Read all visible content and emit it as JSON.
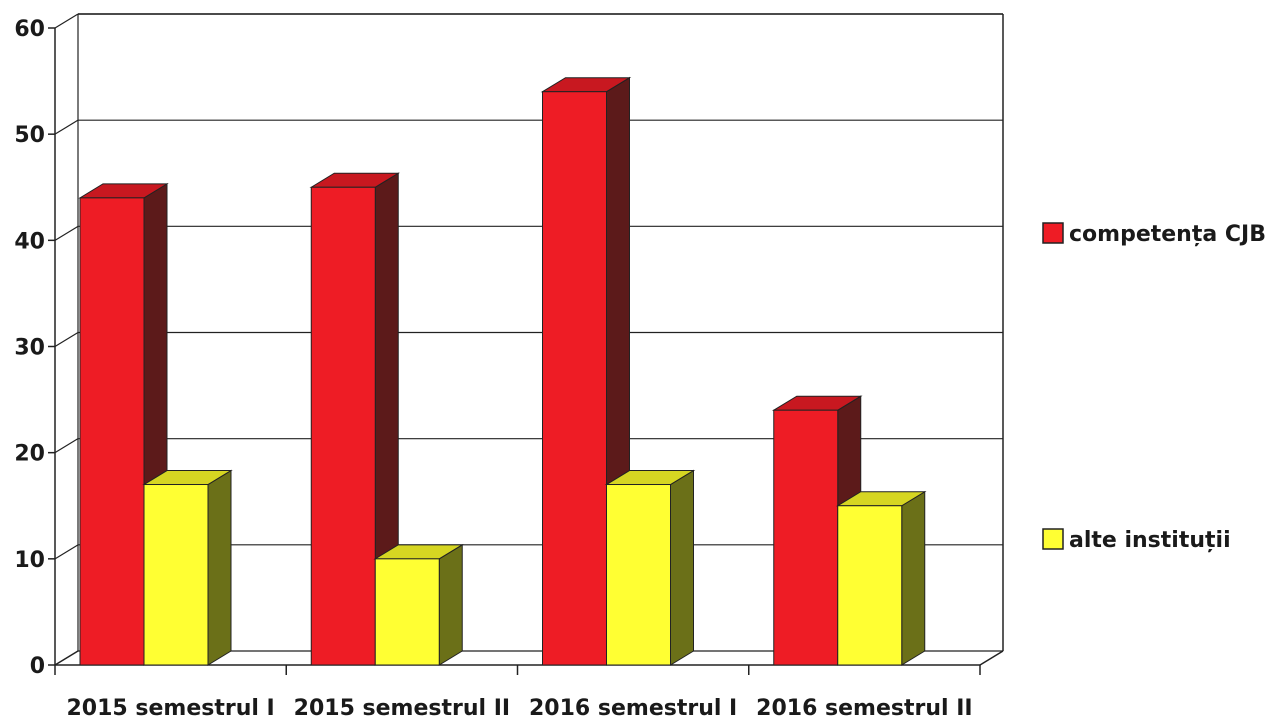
{
  "chart_data": {
    "type": "bar",
    "categories": [
      "2015 semestrul I",
      "2015 semestrul II",
      "2016 semestrul I",
      "2016 semestrul II"
    ],
    "series": [
      {
        "name": "competența CJB",
        "values": [
          44,
          45,
          54,
          24
        ],
        "color": "#ee1c25",
        "side_color": "#5c1a1a",
        "top_color": "#c81820"
      },
      {
        "name": "alte instituții",
        "values": [
          17,
          10,
          17,
          15
        ],
        "color": "#ffff33",
        "side_color": "#6b7018",
        "top_color": "#d6d622"
      }
    ],
    "ylim": [
      0,
      60
    ],
    "yticks": [
      "0",
      "10",
      "20",
      "30",
      "40",
      "50",
      "60"
    ],
    "grid": true,
    "legend": "right",
    "title": "",
    "xlabel": "",
    "ylabel": ""
  }
}
